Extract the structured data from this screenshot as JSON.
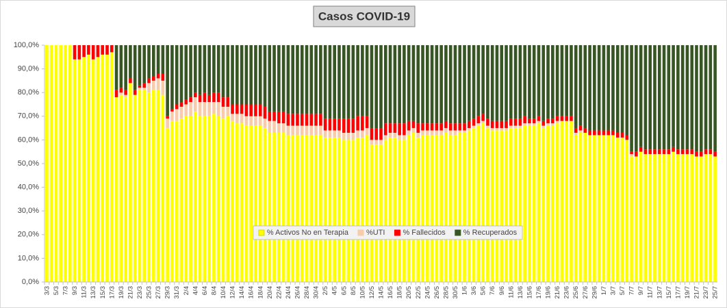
{
  "chart_data": {
    "type": "stacked_bar",
    "title": "Casos COVID-19",
    "categories": [
      "3/3",
      null,
      "5/3",
      null,
      "7/3",
      null,
      "9/3",
      null,
      "11/3",
      null,
      "13/3",
      null,
      "15/3",
      null,
      "17/3",
      null,
      "19/3",
      null,
      "21/3",
      null,
      "23/3",
      null,
      "25/3",
      null,
      "27/3",
      null,
      "29/3",
      null,
      "31/3",
      null,
      "2/4",
      null,
      "4/4",
      null,
      "6/4",
      null,
      "8/4",
      null,
      "10/4",
      null,
      "12/4",
      null,
      "14/4",
      null,
      "16/4",
      null,
      "18/4",
      null,
      "20/4",
      null,
      "22/4",
      null,
      "24/4",
      null,
      "26/4",
      null,
      "28/4",
      null,
      "30/4",
      null,
      "2/5",
      null,
      "4/5",
      null,
      "6/5",
      null,
      "8/5",
      null,
      "10/5",
      null,
      "12/5",
      null,
      "14/5",
      null,
      "16/5",
      null,
      "18/5",
      null,
      "20/5",
      null,
      "22/5",
      null,
      "24/5",
      null,
      "26/5",
      null,
      "28/5",
      null,
      "30/5",
      null,
      "1/6",
      null,
      "3/6",
      null,
      "5/6",
      null,
      "7/6",
      null,
      "9/6",
      null,
      "11/6",
      null,
      "13/6",
      null,
      "15/6",
      null,
      "17/6",
      null,
      "19/6",
      null,
      "21/6",
      null,
      "23/6",
      null,
      "25/6",
      null,
      "27/6",
      null,
      "29/6",
      null,
      "1/7",
      null,
      "3/7",
      null,
      "5/7",
      null,
      "7/7",
      null,
      "9/7",
      null,
      "11/7",
      null,
      "13/7",
      null,
      "15/7",
      null,
      "17/7",
      null,
      "19/7",
      null,
      "21/7",
      null,
      "23/7",
      null,
      "25/7"
    ],
    "series": [
      {
        "name": "% Activos No en Terapia",
        "color": "#ffff00",
        "values": [
          100,
          100,
          100,
          100,
          100,
          100,
          94,
          94,
          95,
          96,
          94,
          95,
          96,
          96,
          97,
          78,
          79,
          78,
          84,
          79,
          81,
          81,
          80,
          81,
          81,
          79,
          65,
          68,
          68,
          69,
          70,
          70,
          72,
          70,
          70,
          70,
          71,
          70,
          69,
          70,
          68,
          67,
          67,
          66,
          66,
          66,
          66,
          65,
          63,
          63,
          63,
          63,
          62,
          62,
          62,
          62,
          62,
          62,
          62,
          62,
          61,
          61,
          61,
          61,
          60,
          60,
          60,
          61,
          61,
          62,
          58,
          58,
          58,
          60,
          61,
          61,
          60,
          60,
          62,
          63,
          61,
          62,
          62,
          62,
          62,
          62,
          63,
          62,
          62,
          63,
          63,
          64,
          65,
          66,
          67,
          65,
          64,
          64,
          64,
          64,
          65,
          65,
          65,
          66,
          66,
          66,
          67,
          65,
          66,
          66,
          67,
          68,
          68,
          68,
          62,
          63,
          63,
          62,
          62,
          62,
          62,
          62,
          62,
          61,
          61,
          60,
          53,
          53,
          55,
          54,
          54,
          54,
          54,
          54,
          54,
          55,
          54,
          54,
          54,
          54,
          53,
          53,
          54,
          54,
          53
        ]
      },
      {
        "name": "%UTI",
        "color": "#f8cbad",
        "values": [
          0,
          0,
          0,
          0,
          0,
          0,
          0,
          0,
          0,
          0,
          0,
          0,
          0,
          0,
          0,
          0,
          1,
          1,
          0,
          0,
          1,
          1,
          4,
          4,
          5,
          6,
          4,
          4,
          5,
          5,
          5,
          6,
          6,
          6,
          6,
          6,
          5,
          6,
          5,
          4,
          3,
          4,
          4,
          4,
          4,
          4,
          4,
          4,
          5,
          5,
          4,
          4,
          4,
          4,
          4,
          4,
          4,
          4,
          4,
          4,
          3,
          3,
          3,
          3,
          3,
          3,
          3,
          3,
          3,
          3,
          2,
          2,
          2,
          2,
          2,
          2,
          2,
          2,
          2,
          2,
          2,
          2,
          2,
          2,
          2,
          2,
          2,
          2,
          2,
          1,
          1,
          1,
          1,
          1,
          1,
          1,
          1,
          1,
          1,
          1,
          1,
          1,
          1,
          1,
          1,
          1,
          1,
          1,
          1,
          1,
          1,
          0,
          0,
          0,
          1,
          1,
          0,
          0,
          0,
          0,
          0,
          0,
          0,
          0,
          0,
          0,
          1,
          0,
          0,
          0,
          0,
          0,
          0,
          0,
          0,
          0,
          0,
          0,
          0,
          0,
          0,
          0,
          0,
          0,
          0
        ]
      },
      {
        "name": "% Fallecidos",
        "color": "#ff0000",
        "values": [
          0,
          0,
          0,
          0,
          0,
          0,
          6,
          6,
          5,
          4,
          6,
          5,
          4,
          4,
          3,
          3,
          2,
          2,
          2,
          2,
          1,
          2,
          2,
          2,
          2,
          3,
          1,
          1,
          2,
          2,
          2,
          2,
          2,
          3,
          4,
          3,
          4,
          4,
          4,
          4,
          4,
          4,
          4,
          5,
          5,
          5,
          5,
          5,
          4,
          4,
          5,
          5,
          5,
          5,
          5,
          5,
          5,
          5,
          5,
          5,
          5,
          5,
          5,
          5,
          6,
          6,
          6,
          6,
          6,
          5,
          5,
          5,
          5,
          5,
          4,
          4,
          5,
          5,
          4,
          3,
          4,
          3,
          3,
          3,
          3,
          3,
          3,
          3,
          3,
          3,
          3,
          3,
          3,
          3,
          3,
          3,
          3,
          3,
          3,
          3,
          3,
          3,
          3,
          3,
          2,
          2,
          2,
          2,
          2,
          2,
          2,
          2,
          2,
          2,
          2,
          2,
          2,
          2,
          2,
          2,
          2,
          2,
          2,
          2,
          2,
          2,
          1,
          2,
          2,
          2,
          2,
          2,
          2,
          2,
          2,
          2,
          2,
          2,
          2,
          2,
          2,
          2,
          2,
          2,
          2
        ]
      },
      {
        "name": "% Recuperados",
        "color": "#375623",
        "values": [
          0,
          0,
          0,
          0,
          0,
          0,
          0,
          0,
          0,
          0,
          0,
          0,
          0,
          0,
          0,
          19,
          18,
          19,
          14,
          19,
          17,
          16,
          14,
          13,
          12,
          12,
          30,
          27,
          25,
          24,
          23,
          22,
          20,
          21,
          20,
          21,
          20,
          20,
          22,
          22,
          25,
          25,
          25,
          25,
          25,
          25,
          25,
          26,
          28,
          28,
          28,
          28,
          29,
          29,
          29,
          29,
          29,
          29,
          29,
          29,
          31,
          31,
          31,
          31,
          31,
          31,
          31,
          30,
          30,
          30,
          35,
          35,
          35,
          33,
          33,
          33,
          33,
          33,
          32,
          32,
          33,
          33,
          33,
          33,
          33,
          33,
          32,
          33,
          33,
          33,
          33,
          32,
          31,
          30,
          29,
          31,
          32,
          32,
          32,
          32,
          31,
          31,
          31,
          30,
          31,
          31,
          30,
          32,
          31,
          31,
          30,
          30,
          30,
          30,
          35,
          34,
          35,
          36,
          36,
          36,
          36,
          36,
          36,
          37,
          37,
          38,
          45,
          45,
          43,
          44,
          44,
          44,
          44,
          44,
          44,
          43,
          44,
          44,
          44,
          44,
          45,
          45,
          44,
          44,
          45
        ]
      }
    ],
    "ylim": [
      0,
      100
    ],
    "yticks": [
      {
        "value": 0,
        "label": "0,0%"
      },
      {
        "value": 10,
        "label": "10,0%"
      },
      {
        "value": 20,
        "label": "20,0%"
      },
      {
        "value": 30,
        "label": "30,0%"
      },
      {
        "value": 40,
        "label": "40,0%"
      },
      {
        "value": 50,
        "label": "50,0%"
      },
      {
        "value": 60,
        "label": "60,0%"
      },
      {
        "value": 70,
        "label": "70,0%"
      },
      {
        "value": 80,
        "label": "80,0%"
      },
      {
        "value": 90,
        "label": "90,0%"
      },
      {
        "value": 100,
        "label": "100,0%"
      }
    ],
    "legend": "bottom-center"
  }
}
